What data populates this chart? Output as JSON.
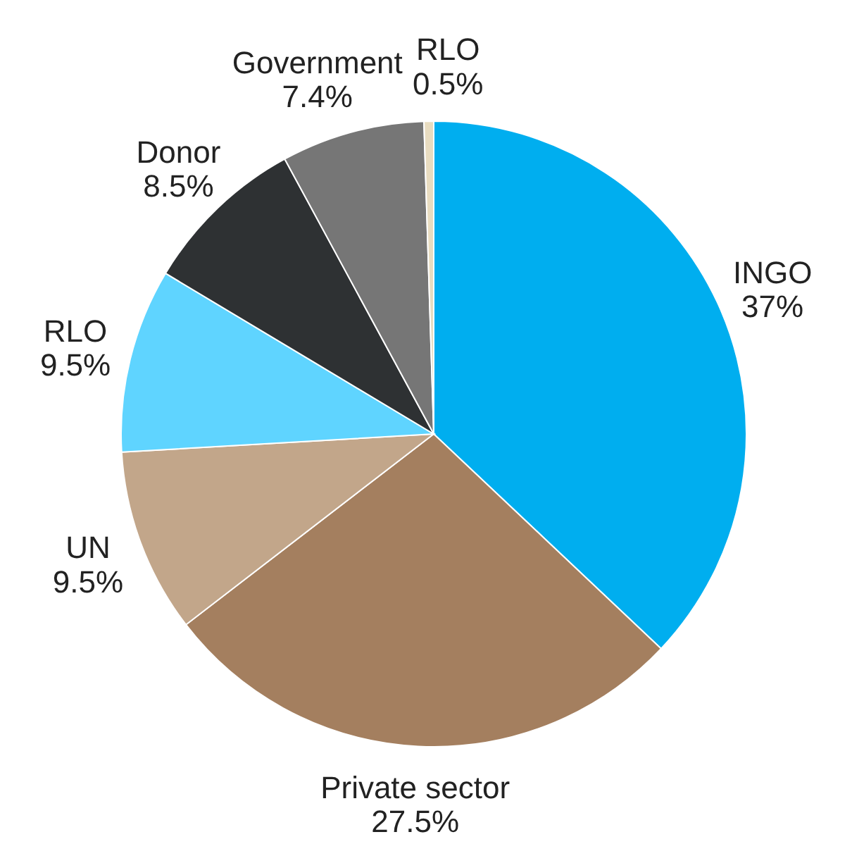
{
  "chart_data": {
    "type": "pie",
    "categories": [
      "INGO",
      "Private sector",
      "UN",
      "RLO",
      "Donor",
      "Government",
      "RLO"
    ],
    "values": [
      37,
      27.5,
      9.5,
      9.5,
      8.5,
      7.4,
      0.5
    ],
    "colors": [
      "#00aeef",
      "#a47f5f",
      "#c2a68a",
      "#5fd4ff",
      "#2e3133",
      "#767676",
      "#e8dcc0"
    ],
    "value_labels": [
      "37%",
      "27.5%",
      "9.5%",
      "9.5%",
      "8.5%",
      "7.4%",
      "0.5%"
    ]
  }
}
